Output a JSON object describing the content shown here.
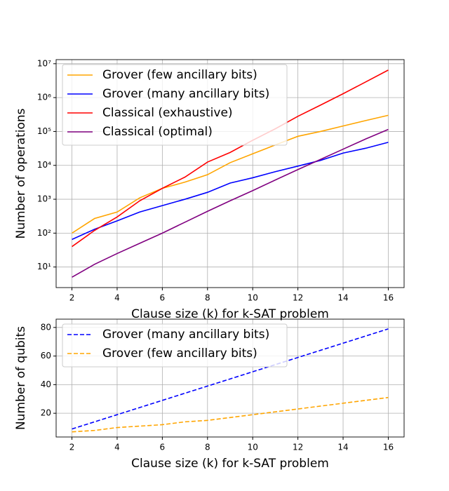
{
  "chart_data": [
    {
      "type": "line",
      "xlabel": "Clause size (k) for k-SAT problem",
      "ylabel": "Number of operations",
      "x": [
        2,
        3,
        4,
        5,
        6,
        7,
        8,
        9,
        10,
        11,
        12,
        13,
        14,
        15,
        16
      ],
      "series": [
        {
          "name": "Grover (few ancillary bits)",
          "color": "#ffa500",
          "values": [
            100,
            270,
            420,
            1100,
            2100,
            3200,
            5300,
            12000,
            22000,
            40000,
            72000,
            100000,
            145000,
            210000,
            300000
          ]
        },
        {
          "name": "Grover (many ancillary bits)",
          "color": "#0000ff",
          "values": [
            65,
            130,
            230,
            420,
            650,
            1000,
            1600,
            3000,
            4300,
            6500,
            9500,
            14000,
            23000,
            32000,
            48000
          ]
        },
        {
          "name": "Classical (exhaustive)",
          "color": "#ff0000",
          "values": [
            40,
            120,
            300,
            900,
            2100,
            4500,
            12500,
            24000,
            55000,
            120000,
            280000,
            600000,
            1300000,
            2900000,
            6500000
          ]
        },
        {
          "name": "Classical (optimal)",
          "color": "#800080",
          "values": [
            5,
            12,
            25,
            50,
            100,
            210,
            440,
            900,
            1800,
            3700,
            7500,
            15000,
            30000,
            60000,
            115000
          ]
        }
      ],
      "xlim": [
        1.3,
        16.7
      ],
      "xticks": [
        2,
        4,
        6,
        8,
        10,
        12,
        14,
        16
      ],
      "ylim": [
        2.47,
        13200000
      ],
      "ylog": true,
      "yticks": [
        {
          "value": 10,
          "label": "10¹"
        },
        {
          "value": 100,
          "label": "10²"
        },
        {
          "value": 1000,
          "label": "10³"
        },
        {
          "value": 10000,
          "label": "10⁴"
        },
        {
          "value": 100000,
          "label": "10⁵"
        },
        {
          "value": 1000000,
          "label": "10⁶"
        },
        {
          "value": 10000000,
          "label": "10⁷"
        }
      ],
      "grid": true,
      "legend": "upper left",
      "line_style": "solid"
    },
    {
      "type": "line",
      "xlabel": "Clause size (k) for k-SAT problem",
      "ylabel": "Number of qubits",
      "x": [
        2,
        3,
        4,
        5,
        6,
        7,
        8,
        9,
        10,
        11,
        12,
        13,
        14,
        15,
        16
      ],
      "series": [
        {
          "name": "Grover (many ancillary bits)",
          "color": "#0000ff",
          "values": [
            9,
            14,
            19,
            24,
            29,
            34,
            39,
            44,
            49,
            54,
            59,
            64,
            69,
            74,
            79
          ]
        },
        {
          "name": "Grover (few ancillary bits)",
          "color": "#ffa500",
          "values": [
            7,
            8,
            10,
            11,
            12,
            14,
            15,
            17,
            19,
            21,
            23,
            25,
            27,
            29,
            31
          ]
        }
      ],
      "xlim": [
        1.3,
        16.7
      ],
      "xticks": [
        2,
        4,
        6,
        8,
        10,
        12,
        14,
        16
      ],
      "ylim": [
        3.4,
        85.8
      ],
      "yticks": [
        20,
        40,
        60,
        80
      ],
      "grid": true,
      "legend": "upper left",
      "line_style": "dashed"
    }
  ]
}
